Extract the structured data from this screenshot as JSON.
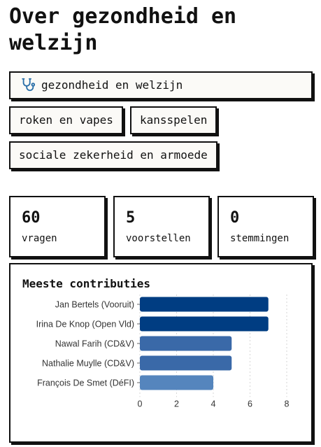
{
  "page": {
    "title": "Over gezondheid en welzijn"
  },
  "tags": {
    "primary": {
      "label": "gezondheid en welzijn",
      "icon": "stethoscope-icon"
    },
    "items": [
      {
        "label": "roken en vapes"
      },
      {
        "label": "kansspelen"
      },
      {
        "label": "sociale zekerheid en armoede"
      }
    ]
  },
  "stats": [
    {
      "value": "60",
      "label": "vragen"
    },
    {
      "value": "5",
      "label": "voorstellen"
    },
    {
      "value": "0",
      "label": "stemmingen"
    }
  ],
  "chart": {
    "title": "Meeste contributies"
  },
  "chart_data": {
    "type": "bar",
    "orientation": "horizontal",
    "title": "Meeste contributies",
    "categories": [
      "Jan Bertels (Vooruit)",
      "Irina De Knop (Open Vld)",
      "Nawal Farih (CD&V)",
      "Nathalie Muylle (CD&V)",
      "François De Smet (DéFI)"
    ],
    "values": [
      7,
      7,
      5,
      5,
      4
    ],
    "xlim": [
      0,
      8
    ],
    "xticks": [
      "0",
      "2",
      "4",
      "6",
      "8"
    ],
    "grid": "vertical dashed",
    "colors": [
      "#003d82",
      "#003d82",
      "#3a69a8",
      "#3a69a8",
      "#5585bd"
    ],
    "stethoscope_color": "#2a6fa8"
  }
}
